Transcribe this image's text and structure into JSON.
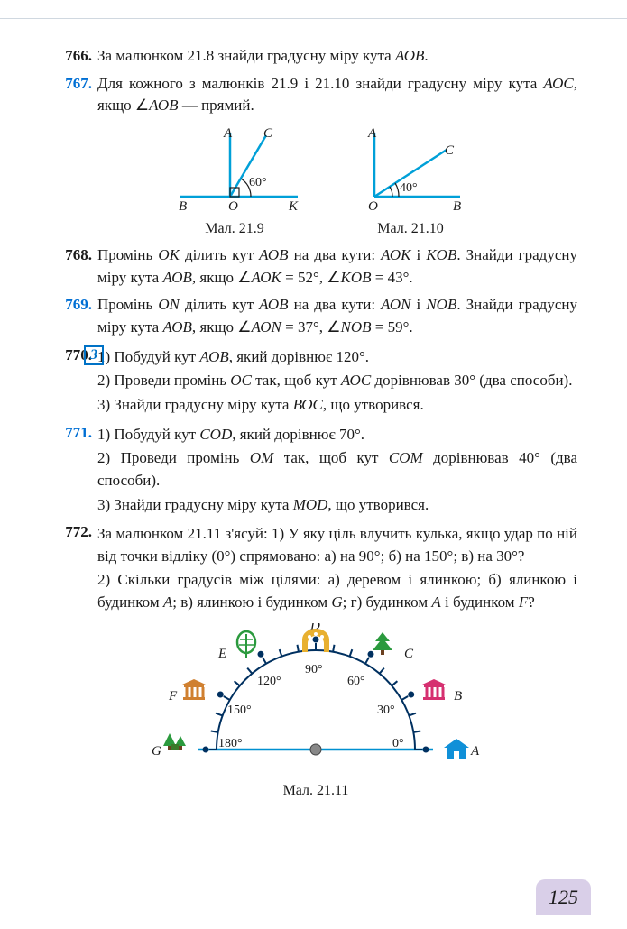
{
  "page_number": "125",
  "problems": {
    "p766": {
      "num": "766.",
      "text": "За малюнком 21.8 знайди градусну міру кута <i>АОВ</i>."
    },
    "p767": {
      "num": "767.",
      "text": "Для кожного з малюнків 21.9 і 21.10 знайди градусну міру кута <i>АОС</i>, якщо ∠<i>АОВ</i> — прямий."
    },
    "p768": {
      "num": "768.",
      "text": "Промінь <i>ОK</i> ділить кут <i>АОВ</i> на два кути: <i>АОK</i> і <i>KОВ</i>. Знайди градусну міру кута <i>АОВ</i>, якщо ∠<i>АОK</i> = 52°, ∠<i>KOB</i> = 43°."
    },
    "p769": {
      "num": "769.",
      "text": "Промінь <i>ОN</i> ділить кут <i>АОВ</i> на два кути: <i>АОN</i> і <i>NОВ</i>. Знайди градусну міру кута <i>АОВ</i>, якщо ∠<i>АОN</i> = 37°, ∠<i>NOB</i> = 59°."
    },
    "p770": {
      "num": "770.",
      "level": "3",
      "l1": "1) Побудуй кут <i>АОВ</i>, який дорівнює 120°.",
      "l2": "2) Проведи промінь <i>ОС</i> так, щоб кут <i>АОС</i> дорівнював 30° (два способи).",
      "l3": "3) Знайди градусну міру кута <i>ВОС</i>, що утворився."
    },
    "p771": {
      "num": "771.",
      "l1": "1) Побудуй кут <i>СОD</i>, який дорівнює 70°.",
      "l2": "2) Проведи промінь <i>ОМ</i> так, щоб кут <i>СОМ</i> дорівнював 40° (два способи).",
      "l3": "3) Знайди градусну міру кута <i>МОD</i>, що утворився."
    },
    "p772": {
      "num": "772.",
      "l1": "За малюнком 21.11 з'ясуй: 1) У яку ціль влучить кулька, якщо удар по ній від точки відліку (0°) спрямовано: а) на 90°; б) на 150°; в) на 30°?",
      "l2": "2) Скільки градусів між цілями: а) деревом і ялинкою; б) ялинкою і будинком <i>А</i>; в) ялинкою і будинком <i>G</i>; г) будинком <i>А</i> і будинком <i>F</i>?"
    }
  },
  "figures": {
    "f219": {
      "caption": "Мал. 21.9",
      "angle": "60°",
      "labels": {
        "A": "A",
        "B": "B",
        "C": "C",
        "O": "O",
        "K": "K"
      },
      "line_color": "#00a0d8"
    },
    "f2110": {
      "caption": "Мал. 21.10",
      "angle": "40°",
      "labels": {
        "A": "A",
        "B": "B",
        "C": "C",
        "O": "O"
      },
      "line_color": "#00a0d8"
    },
    "f2111": {
      "caption": "Мал. 21.11",
      "angles": [
        "0°",
        "30°",
        "60°",
        "90°",
        "120°",
        "150°",
        "180°"
      ],
      "points": [
        "A",
        "B",
        "C",
        "D",
        "E",
        "F",
        "G"
      ],
      "line_color": "#0090d0",
      "tick_color": "#003060",
      "icons": {
        "A": {
          "type": "house",
          "color": "#1090d8"
        },
        "B": {
          "type": "temple",
          "color": "#d63070"
        },
        "C": {
          "type": "tree",
          "color": "#2b9a3e"
        },
        "D": {
          "type": "arch",
          "color": "#e8b030"
        },
        "E": {
          "type": "pine",
          "color": "#2b9a3e"
        },
        "F": {
          "type": "temple",
          "color": "#d08030"
        },
        "G": {
          "type": "trees",
          "color": "#2b9a3e"
        }
      }
    }
  }
}
